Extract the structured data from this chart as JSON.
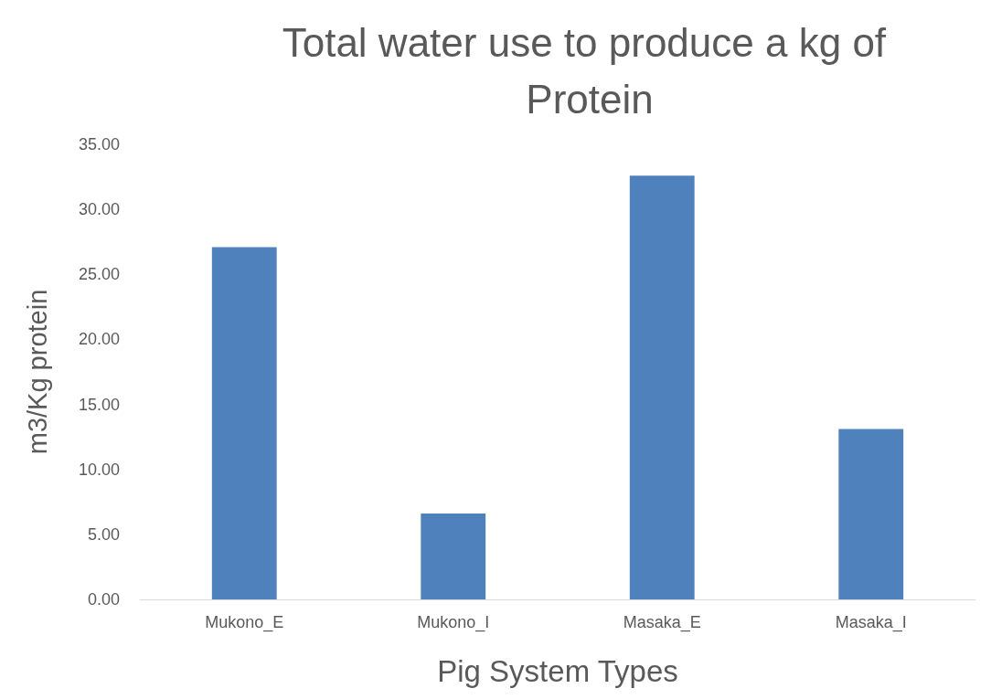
{
  "chart_data": {
    "type": "bar",
    "title": "Total water use to produce a kg of Protein",
    "xlabel": "Pig System Types",
    "ylabel": "m3/Kg protein",
    "categories": [
      "Mukono_E",
      "Mukono_I",
      "Masaka_E",
      "Masaka_I"
    ],
    "values": [
      27.1,
      6.6,
      32.6,
      13.1
    ],
    "color": "#4f81bd",
    "ylim": [
      0,
      35
    ],
    "yticks": [
      {
        "value": 0,
        "label": "0.00"
      },
      {
        "value": 5,
        "label": "5.00"
      },
      {
        "value": 10,
        "label": "10.00"
      },
      {
        "value": 15,
        "label": "15.00"
      },
      {
        "value": 20,
        "label": "20.00"
      },
      {
        "value": 25,
        "label": "25.00"
      },
      {
        "value": 30,
        "label": "30.00"
      },
      {
        "value": 35,
        "label": "35.00"
      }
    ],
    "grid": false
  }
}
